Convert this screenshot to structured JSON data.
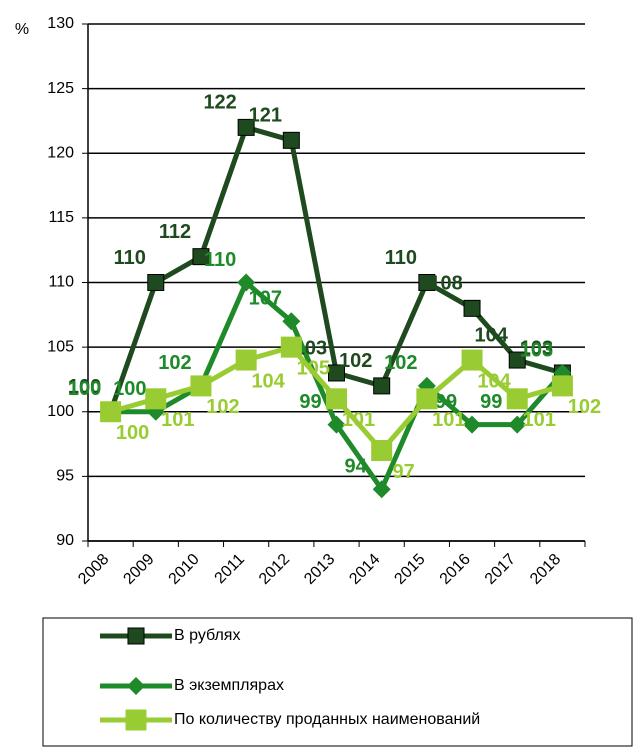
{
  "chart_data": {
    "type": "line",
    "y_label": "%",
    "categories": [
      "2008",
      "2009",
      "2010",
      "2011",
      "2012",
      "2013",
      "2014",
      "2015",
      "2016",
      "2017",
      "2018"
    ],
    "series": [
      {
        "name": "В рублях",
        "color": "#1f4a1f",
        "marker": "square",
        "values": [
          100,
          110,
          112,
          122,
          121,
          103,
          102,
          110,
          108,
          104,
          103
        ]
      },
      {
        "name": "В экземплярах",
        "color": "#1f8a2a",
        "marker": "diamond",
        "values": [
          100,
          100,
          102,
          110,
          107,
          99,
          94,
          102,
          99,
          99,
          103
        ]
      },
      {
        "name": "По количеству проданных наименований",
        "color": "#99cc33",
        "marker": "square",
        "values": [
          100,
          101,
          102,
          104,
          105,
          101,
          97,
          101,
          104,
          101,
          102
        ]
      }
    ],
    "ylim": [
      90,
      130
    ],
    "yticks": [
      90,
      95,
      100,
      105,
      110,
      115,
      120,
      125,
      130
    ],
    "grid": true
  }
}
